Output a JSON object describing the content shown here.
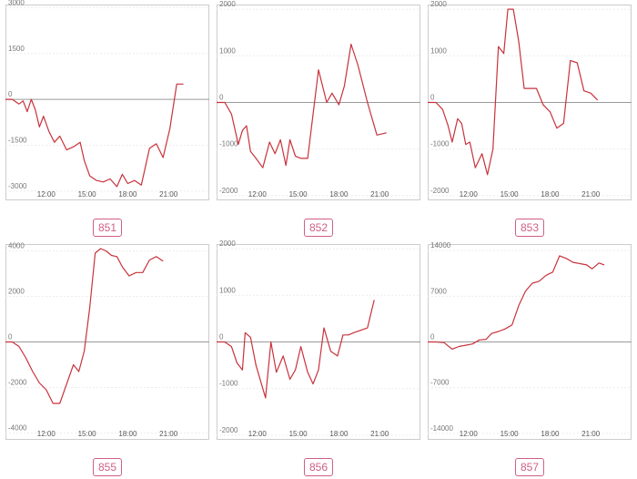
{
  "chart_data": [
    {
      "type": "line",
      "label": "851",
      "xlim": [
        9,
        24
      ],
      "ylim": [
        -3300,
        3100
      ],
      "yticks": [
        3000,
        1500,
        0,
        -1500,
        -3000
      ],
      "ytick_labels": [
        "3000",
        "1500",
        "0",
        "-1500",
        "-3000"
      ],
      "xticks": [
        12,
        15,
        18,
        21
      ],
      "xtick_labels": [
        "12:00",
        "15:00",
        "18:00",
        "21:00"
      ],
      "line_color": "#c8323c",
      "x": [
        9.0,
        9.5,
        10.0,
        10.3,
        10.6,
        10.9,
        11.2,
        11.5,
        11.8,
        12.2,
        12.6,
        13.0,
        13.5,
        14.0,
        14.5,
        14.8,
        15.2,
        15.7,
        16.2,
        16.7,
        17.2,
        17.6,
        18.0,
        18.5,
        19.0,
        19.6,
        20.1,
        20.6,
        21.1,
        21.6,
        22.1,
        22.6,
        23.0
      ],
      "y": [
        0,
        0,
        -150,
        -50,
        -400,
        0,
        -350,
        -900,
        -550,
        -1050,
        -1400,
        -1200,
        -1650,
        -1550,
        -1400,
        -2000,
        -2500,
        -2650,
        -2700,
        -2600,
        -2850,
        -2450,
        -2750,
        -2650,
        -2800,
        -1600,
        -1450,
        -1900,
        -950,
        500,
        500,
        null,
        null
      ]
    },
    {
      "type": "line",
      "label": "852",
      "xlim": [
        9,
        24
      ],
      "ylim": [
        -2100,
        2100
      ],
      "yticks": [
        2000,
        1000,
        0,
        -1000,
        -2000
      ],
      "ytick_labels": [
        "2000",
        "1000",
        "0",
        "-1000",
        "-2000"
      ],
      "xticks": [
        12,
        15,
        18,
        21
      ],
      "xtick_labels": [
        "12:00",
        "15:00",
        "18:00",
        "21:00"
      ],
      "line_color": "#c8323c",
      "x": [
        9.0,
        9.6,
        10.1,
        10.6,
        10.9,
        11.2,
        11.5,
        11.9,
        12.4,
        12.9,
        13.3,
        13.7,
        14.1,
        14.4,
        14.8,
        15.2,
        15.7,
        16.5,
        17.1,
        17.5,
        18.0,
        18.4,
        18.9,
        19.4,
        20.1,
        20.8,
        21.5,
        22.0,
        22.6,
        23.0
      ],
      "y": [
        0,
        0,
        -250,
        -900,
        -600,
        -500,
        -1050,
        -1200,
        -1400,
        -850,
        -1100,
        -800,
        -1350,
        -800,
        -1150,
        -1200,
        -1200,
        700,
        0,
        200,
        -50,
        350,
        1250,
        800,
        0,
        -700,
        -650,
        null,
        null,
        null
      ]
    },
    {
      "type": "line",
      "label": "853",
      "xlim": [
        9,
        24
      ],
      "ylim": [
        -2100,
        2100
      ],
      "yticks": [
        2000,
        1000,
        0,
        -1000,
        -2000
      ],
      "ytick_labels": [
        "2000",
        "1000",
        "0",
        "-1000",
        "-2000"
      ],
      "xticks": [
        12,
        15,
        18,
        21
      ],
      "xtick_labels": [
        "12:00",
        "15:00",
        "18:00",
        "21:00"
      ],
      "line_color": "#c8323c",
      "x": [
        9.0,
        9.6,
        10.1,
        10.5,
        10.8,
        11.2,
        11.5,
        11.8,
        12.1,
        12.5,
        13.0,
        13.4,
        13.8,
        14.2,
        14.6,
        14.9,
        15.3,
        15.7,
        16.1,
        16.5,
        17.0,
        17.5,
        18.0,
        18.5,
        19.0,
        19.5,
        20.0,
        20.5,
        21.0,
        21.5,
        22.0,
        22.5,
        23.0
      ],
      "y": [
        0,
        0,
        -150,
        -500,
        -850,
        -350,
        -450,
        -900,
        -850,
        -1400,
        -1100,
        -1550,
        -1000,
        1200,
        1050,
        2000,
        2000,
        1300,
        300,
        300,
        300,
        -50,
        -200,
        -550,
        -450,
        900,
        850,
        250,
        200,
        50,
        null,
        null,
        null
      ]
    },
    {
      "type": "line",
      "label": "855",
      "xlim": [
        9,
        24
      ],
      "ylim": [
        -4300,
        4300
      ],
      "yticks": [
        4000,
        2000,
        0,
        -2000,
        -4000
      ],
      "ytick_labels": [
        "4000",
        "2000",
        "0",
        "-2000",
        "-4000"
      ],
      "xticks": [
        12,
        15,
        18,
        21
      ],
      "xtick_labels": [
        "12:00",
        "15:00",
        "18:00",
        "21:00"
      ],
      "line_color": "#c8323c",
      "x": [
        9.0,
        9.5,
        10.0,
        10.5,
        11.0,
        11.5,
        12.0,
        12.5,
        13.0,
        13.5,
        14.0,
        14.4,
        14.8,
        15.2,
        15.6,
        16.0,
        16.4,
        16.8,
        17.2,
        17.6,
        18.1,
        18.6,
        19.1,
        19.6,
        20.1,
        20.6,
        21.1,
        21.6,
        22.1,
        22.6,
        23.0
      ],
      "y": [
        0,
        0,
        -200,
        -700,
        -1300,
        -1800,
        -2100,
        -2700,
        -2700,
        -1850,
        -1000,
        -1300,
        -400,
        1500,
        3900,
        4100,
        4000,
        3800,
        3750,
        3300,
        2900,
        3050,
        3050,
        3600,
        3750,
        3550,
        null,
        null,
        null,
        null,
        null
      ]
    },
    {
      "type": "line",
      "label": "856",
      "xlim": [
        9,
        24
      ],
      "ylim": [
        -2100,
        2100
      ],
      "yticks": [
        2000,
        1000,
        0,
        -1000,
        -2000
      ],
      "ytick_labels": [
        "2000",
        "1000",
        "0",
        "-1000",
        "-2000"
      ],
      "xticks": [
        12,
        15,
        18,
        21
      ],
      "xtick_labels": [
        "12:00",
        "15:00",
        "18:00",
        "21:00"
      ],
      "line_color": "#c8323c",
      "x": [
        9.0,
        9.6,
        10.1,
        10.5,
        10.9,
        11.1,
        11.5,
        11.9,
        12.3,
        12.6,
        13.0,
        13.4,
        13.9,
        14.4,
        14.8,
        15.2,
        15.7,
        16.1,
        16.5,
        16.9,
        17.4,
        17.9,
        18.3,
        18.7,
        19.1,
        19.6,
        20.1,
        20.6,
        21.1,
        21.6,
        22.1,
        22.6,
        23.0
      ],
      "y": [
        0,
        0,
        -100,
        -450,
        -600,
        200,
        100,
        -500,
        -900,
        -1200,
        0,
        -650,
        -300,
        -800,
        -600,
        -100,
        -650,
        -900,
        -600,
        300,
        -200,
        -300,
        150,
        150,
        200,
        250,
        300,
        900,
        null,
        null,
        null,
        null,
        null
      ]
    },
    {
      "type": "line",
      "label": "857",
      "xlim": [
        9,
        24
      ],
      "ylim": [
        -15000,
        15000
      ],
      "yticks": [
        14000,
        7000,
        0,
        -7000,
        -14000
      ],
      "ytick_labels": [
        "14000",
        "7000",
        "0",
        "-7000",
        "-14000"
      ],
      "xticks": [
        12,
        15,
        18,
        21
      ],
      "xtick_labels": [
        "12:00",
        "15:00",
        "18:00",
        "21:00"
      ],
      "line_color": "#c8323c",
      "x": [
        9.0,
        9.6,
        10.2,
        10.8,
        11.3,
        11.8,
        12.3,
        12.8,
        13.3,
        13.7,
        14.2,
        14.7,
        15.2,
        15.7,
        16.2,
        16.7,
        17.2,
        17.7,
        18.2,
        18.7,
        19.2,
        19.7,
        20.2,
        20.7,
        21.1,
        21.6,
        22.0,
        22.4,
        22.8,
        23.0
      ],
      "y": [
        0,
        0,
        -100,
        -1100,
        -700,
        -500,
        -300,
        300,
        400,
        1300,
        1600,
        2000,
        2600,
        5600,
        7800,
        9000,
        9300,
        10200,
        10700,
        13200,
        12800,
        12200,
        12000,
        11800,
        11200,
        12100,
        11800,
        null,
        null,
        null
      ]
    }
  ]
}
